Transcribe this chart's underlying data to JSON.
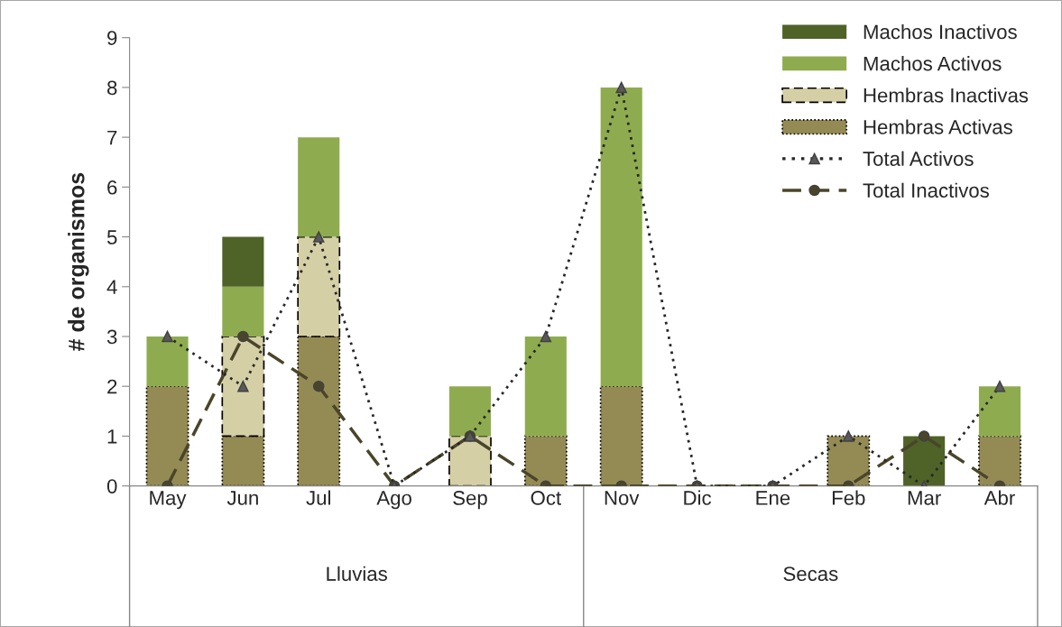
{
  "chart_data": {
    "type": "bar",
    "stacked": true,
    "ylabel": "# de organismos",
    "categories": [
      "May",
      "Jun",
      "Jul",
      "Ago",
      "Sep",
      "Oct",
      "Nov",
      "Dic",
      "Ene",
      "Feb",
      "Mar",
      "Abr"
    ],
    "series": [
      {
        "name": "Hembras Activas",
        "color": "#948a54",
        "line_style": "dotted",
        "values": [
          2,
          1,
          3,
          0,
          0,
          1,
          2,
          0,
          0,
          1,
          0,
          1
        ]
      },
      {
        "name": "Hembras Inactivas",
        "color": "#d5cfa6",
        "line_style": "dashed",
        "values": [
          0,
          2,
          2,
          0,
          1,
          0,
          0,
          0,
          0,
          0,
          0,
          0
        ]
      },
      {
        "name": "Machos Activos",
        "color": "#8eac4f",
        "values": [
          1,
          1,
          2,
          0,
          1,
          2,
          6,
          0,
          0,
          0,
          0,
          1
        ]
      },
      {
        "name": "Machos Inactivos",
        "color": "#4f6228",
        "values": [
          0,
          1,
          0,
          0,
          0,
          0,
          0,
          0,
          0,
          0,
          1,
          0
        ]
      },
      {
        "name": "Total Activos",
        "type": "line",
        "color": "#262626",
        "line_style": "dotted",
        "marker": "triangle",
        "values": [
          3,
          2,
          5,
          0,
          1,
          3,
          8,
          0,
          0,
          1,
          0,
          2
        ]
      },
      {
        "name": "Total Inactivos",
        "type": "line",
        "color": "#4a452a",
        "line_style": "dashed",
        "marker": "circle",
        "values": [
          0,
          3,
          2,
          0,
          1,
          0,
          0,
          0,
          0,
          0,
          1,
          0
        ]
      }
    ],
    "ylim": [
      0,
      9
    ],
    "yticks": [
      0,
      1,
      2,
      3,
      4,
      5,
      6,
      7,
      8,
      9
    ],
    "grid": false,
    "legend": "top right",
    "annotations": [
      "Lluvias",
      "Secas"
    ]
  }
}
